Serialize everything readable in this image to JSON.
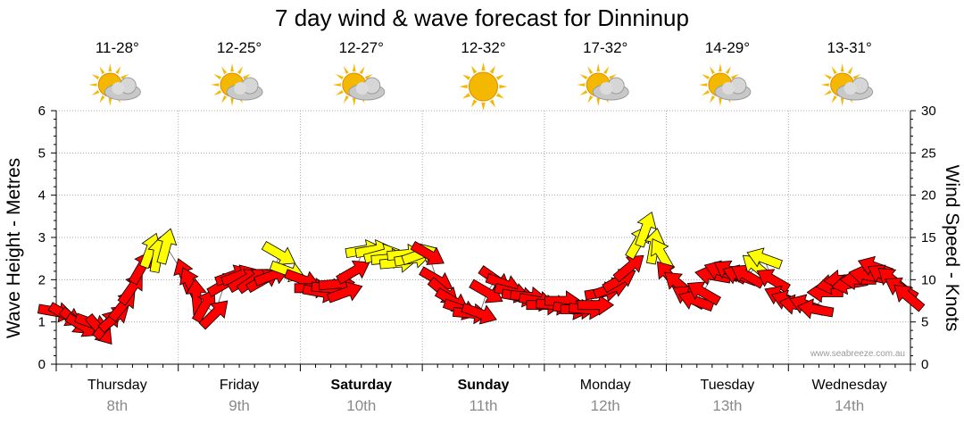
{
  "title": "7 day wind & wave forecast for Dinninup",
  "watermark": "www.seabreeze.com.au",
  "colors": {
    "strong_wind": "#ff0000",
    "moderate_wind": "#ffff00",
    "swell": "#e0e0e0",
    "sun": "#f5b800",
    "cloud": "#c8c8c8"
  },
  "days": [
    {
      "name": "Thursday",
      "date": "8th",
      "bold": false,
      "temp": "11-28°",
      "weather_icon": "partly-cloudy-icon"
    },
    {
      "name": "Friday",
      "date": "9th",
      "bold": false,
      "temp": "12-25°",
      "weather_icon": "partly-cloudy-icon"
    },
    {
      "name": "Saturday",
      "date": "10th",
      "bold": true,
      "temp": "12-27°",
      "weather_icon": "partly-cloudy-icon"
    },
    {
      "name": "Sunday",
      "date": "11th",
      "bold": true,
      "temp": "12-32°",
      "weather_icon": "sunny-icon"
    },
    {
      "name": "Monday",
      "date": "12th",
      "bold": false,
      "temp": "17-32°",
      "weather_icon": "partly-cloudy-icon"
    },
    {
      "name": "Tuesday",
      "date": "13th",
      "bold": false,
      "temp": "14-29°",
      "weather_icon": "partly-cloudy-icon"
    },
    {
      "name": "Wednesday",
      "date": "14th",
      "bold": false,
      "temp": "13-31°",
      "weather_icon": "partly-cloudy-icon"
    }
  ],
  "chart_data": {
    "type": "line",
    "title": "7 day wind & wave forecast for Dinninup",
    "ylabel": "Wave Height - Metres",
    "y2label": "Wind Speed - Knots",
    "ylim": [
      0,
      6
    ],
    "y2lim": [
      0,
      30
    ],
    "yticks": [
      "0",
      "1",
      "2",
      "3",
      "4",
      "5",
      "6"
    ],
    "y2ticks": [
      "0",
      "5",
      "10",
      "15",
      "20",
      "25",
      "30"
    ],
    "x_unit": "days from start of Thursday",
    "series": [
      {
        "name": "Wave height (m)",
        "values": []
      },
      {
        "name": "Wind arrows",
        "fields": [
          "day",
          "knots",
          "dir_deg_from"
        ],
        "points": [
          [
            0.0,
            6.2,
            280
          ],
          [
            0.08,
            5.8,
            300
          ],
          [
            0.16,
            5.0,
            310
          ],
          [
            0.22,
            4.5,
            300
          ],
          [
            0.3,
            4.8,
            290
          ],
          [
            0.36,
            4.0,
            320
          ],
          [
            0.42,
            4.8,
            220
          ],
          [
            0.48,
            5.5,
            230
          ],
          [
            0.55,
            7.0,
            220
          ],
          [
            0.62,
            9.0,
            215
          ],
          [
            0.7,
            11.5,
            210
          ],
          [
            0.77,
            13.5,
            200
          ],
          [
            0.83,
            13.0,
            190
          ],
          [
            0.9,
            14.0,
            195
          ],
          [
            1.05,
            10.5,
            160
          ],
          [
            1.1,
            9.5,
            155
          ],
          [
            1.15,
            8.0,
            175
          ],
          [
            1.22,
            7.0,
            210
          ],
          [
            1.3,
            6.0,
            225
          ],
          [
            1.38,
            9.5,
            240
          ],
          [
            1.45,
            10.5,
            250
          ],
          [
            1.5,
            10.5,
            250
          ],
          [
            1.55,
            10.0,
            240
          ],
          [
            1.62,
            10.0,
            235
          ],
          [
            1.7,
            10.0,
            240
          ],
          [
            1.77,
            10.5,
            250
          ],
          [
            1.83,
            13.0,
            300
          ],
          [
            1.9,
            11.0,
            290
          ],
          [
            2.02,
            10.0,
            290
          ],
          [
            2.1,
            9.0,
            270
          ],
          [
            2.17,
            8.5,
            280
          ],
          [
            2.24,
            9.0,
            275
          ],
          [
            2.3,
            9.5,
            265
          ],
          [
            2.37,
            8.5,
            250
          ],
          [
            2.44,
            11.0,
            240
          ],
          [
            2.52,
            13.5,
            260
          ],
          [
            2.6,
            13.5,
            260
          ],
          [
            2.67,
            13.0,
            255
          ],
          [
            2.73,
            12.5,
            265
          ],
          [
            2.8,
            12.0,
            265
          ],
          [
            2.86,
            13.0,
            265
          ],
          [
            2.92,
            12.5,
            260
          ],
          [
            2.98,
            13.0,
            250
          ],
          [
            3.05,
            13.0,
            300
          ],
          [
            3.12,
            10.0,
            300
          ],
          [
            3.18,
            8.5,
            310
          ],
          [
            3.25,
            7.5,
            300
          ],
          [
            3.32,
            6.5,
            290
          ],
          [
            3.4,
            6.0,
            275
          ],
          [
            3.47,
            6.0,
            290
          ],
          [
            3.53,
            8.5,
            300
          ],
          [
            3.6,
            10.0,
            305
          ],
          [
            3.67,
            9.5,
            290
          ],
          [
            3.74,
            8.5,
            285
          ],
          [
            3.8,
            8.0,
            280
          ],
          [
            3.87,
            8.0,
            275
          ],
          [
            3.94,
            7.5,
            280
          ],
          [
            4.0,
            7.0,
            270
          ],
          [
            4.08,
            7.0,
            275
          ],
          [
            4.15,
            7.5,
            270
          ],
          [
            4.22,
            6.5,
            280
          ],
          [
            4.28,
            6.5,
            270
          ],
          [
            4.35,
            6.5,
            275
          ],
          [
            4.42,
            7.0,
            270
          ],
          [
            4.48,
            8.5,
            260
          ],
          [
            4.55,
            9.0,
            250
          ],
          [
            4.62,
            10.0,
            240
          ],
          [
            4.7,
            11.5,
            230
          ],
          [
            4.77,
            14.5,
            210
          ],
          [
            4.83,
            16.0,
            200
          ],
          [
            4.9,
            14.0,
            190
          ],
          [
            4.96,
            13.0,
            150
          ],
          [
            5.02,
            10.5,
            140
          ],
          [
            5.1,
            9.5,
            130
          ],
          [
            5.18,
            8.0,
            120
          ],
          [
            5.24,
            7.5,
            110
          ],
          [
            5.3,
            8.5,
            120
          ],
          [
            5.38,
            10.5,
            100
          ],
          [
            5.45,
            11.0,
            110
          ],
          [
            5.52,
            11.0,
            120
          ],
          [
            5.6,
            10.5,
            110
          ],
          [
            5.66,
            10.5,
            120
          ],
          [
            5.74,
            11.5,
            130
          ],
          [
            5.8,
            12.5,
            110
          ],
          [
            5.87,
            10.0,
            120
          ],
          [
            5.94,
            8.0,
            115
          ],
          [
            6.0,
            7.5,
            110
          ],
          [
            6.07,
            7.0,
            100
          ],
          [
            6.15,
            7.0,
            110
          ],
          [
            6.22,
            6.5,
            100
          ],
          [
            6.3,
            8.5,
            90
          ],
          [
            6.37,
            9.5,
            80
          ],
          [
            6.44,
            10.0,
            85
          ],
          [
            6.5,
            9.5,
            80
          ],
          [
            6.57,
            10.0,
            90
          ],
          [
            6.64,
            10.5,
            100
          ],
          [
            6.71,
            11.5,
            110
          ],
          [
            6.78,
            10.5,
            120
          ],
          [
            6.85,
            10.0,
            130
          ],
          [
            6.92,
            9.0,
            120
          ],
          [
            6.98,
            8.0,
            130
          ]
        ]
      }
    ],
    "legend": "none",
    "grid": true
  }
}
